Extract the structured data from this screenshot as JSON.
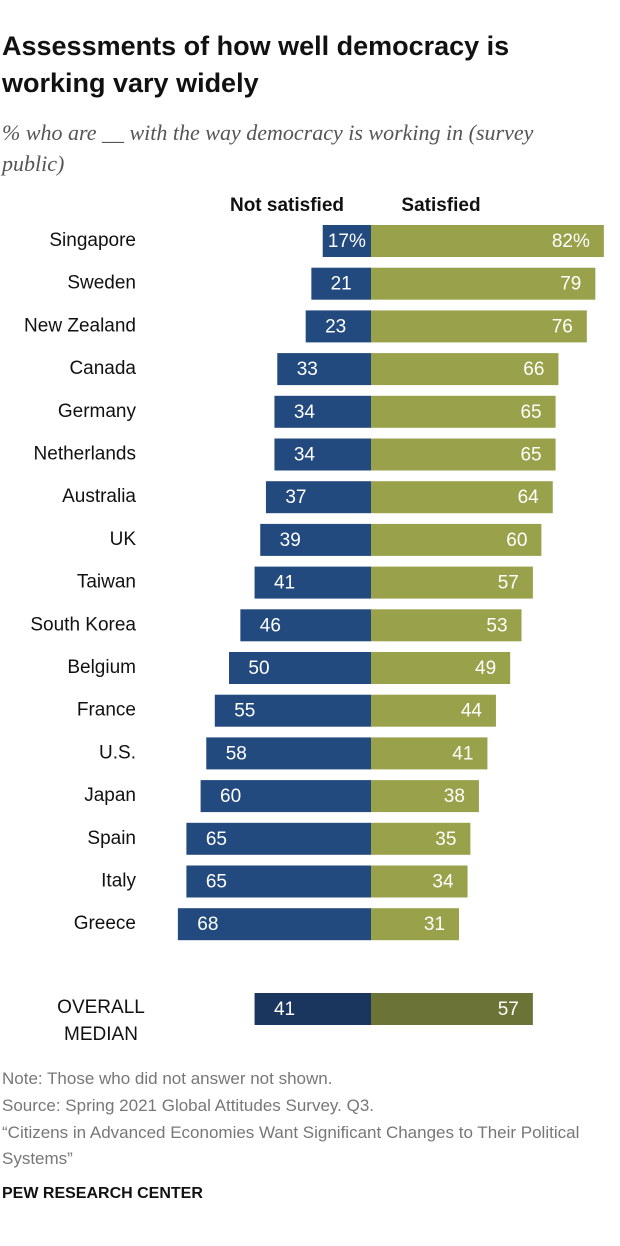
{
  "chart_data": {
    "type": "diverging_bar",
    "title": "Assessments of how well democracy is working vary widely",
    "subtitle": "% who are __ with the way democracy is working in (survey public)",
    "categories": [
      "Singapore",
      "Sweden",
      "New Zealand",
      "Canada",
      "Germany",
      "Netherlands",
      "Australia",
      "UK",
      "Taiwan",
      "South Korea",
      "Belgium",
      "France",
      "U.S.",
      "Japan",
      "Spain",
      "Italy",
      "Greece"
    ],
    "series": [
      {
        "name": "Not satisfied",
        "color": "#234a7e",
        "side": "left",
        "values": [
          17,
          21,
          23,
          33,
          34,
          34,
          37,
          39,
          41,
          46,
          50,
          55,
          58,
          60,
          65,
          65,
          68
        ],
        "value_labels": [
          "17%",
          "21",
          "23",
          "33",
          "34",
          "34",
          "37",
          "39",
          "41",
          "46",
          "50",
          "55",
          "58",
          "60",
          "65",
          "65",
          "68"
        ]
      },
      {
        "name": "Satisfied",
        "color": "#99a24b",
        "side": "right",
        "values": [
          82,
          79,
          76,
          66,
          65,
          65,
          64,
          60,
          57,
          53,
          49,
          44,
          41,
          38,
          35,
          34,
          31
        ],
        "value_labels": [
          "82%",
          "79",
          "76",
          "66",
          "65",
          "65",
          "64",
          "60",
          "57",
          "53",
          "49",
          "44",
          "41",
          "38",
          "35",
          "34",
          "31"
        ]
      }
    ],
    "median": {
      "category": "OVERALL MEDIAN",
      "values": [
        41,
        57
      ],
      "colors": [
        "#1b365e",
        "#6b7336"
      ]
    }
  },
  "notes": [
    "Note: Those who did not answer not shown.",
    "Source: Spring 2021 Global Attitudes Survey. Q3.",
    "“Citizens in Advanced Economies Want Significant Changes to Their Political Systems”"
  ],
  "source_org": "PEW RESEARCH CENTER"
}
